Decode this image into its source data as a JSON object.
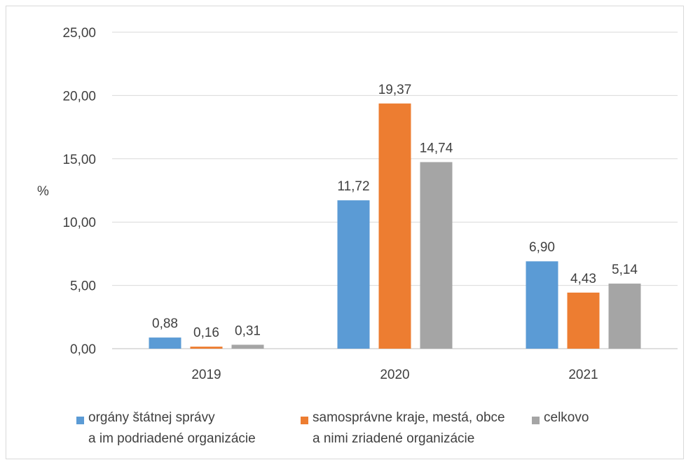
{
  "chart_data": {
    "type": "bar",
    "title": "",
    "xlabel": "",
    "ylabel": "%",
    "ylim": [
      0,
      25
    ],
    "yticks": [
      "0,00",
      "5,00",
      "10,00",
      "15,00",
      "20,00",
      "25,00"
    ],
    "categories": [
      "2019",
      "2020",
      "2021"
    ],
    "grid": true,
    "legend_position": "bottom",
    "series": [
      {
        "name": "orgány štátnej správy a im podriadené organizácie",
        "name_lines": [
          "orgány štátnej správy",
          "a im podriadené organizácie"
        ],
        "color": "#5b9bd5",
        "values": [
          0.88,
          11.72,
          6.9
        ],
        "labels": [
          "0,88",
          "11,72",
          "6,90"
        ]
      },
      {
        "name": "samosprávne kraje, mestá, obce a nimi zriadené organizácie",
        "name_lines": [
          "samosprávne kraje, mestá, obce",
          "a nimi zriadené organizácie"
        ],
        "color": "#ed7d31",
        "values": [
          0.16,
          19.37,
          4.43
        ],
        "labels": [
          "0,16",
          "19,37",
          "4,43"
        ]
      },
      {
        "name": "celkovo",
        "name_lines": [
          "celkovo"
        ],
        "color": "#a5a5a5",
        "values": [
          0.31,
          14.74,
          5.14
        ],
        "labels": [
          "0,31",
          "14,74",
          "5,14"
        ]
      }
    ]
  }
}
